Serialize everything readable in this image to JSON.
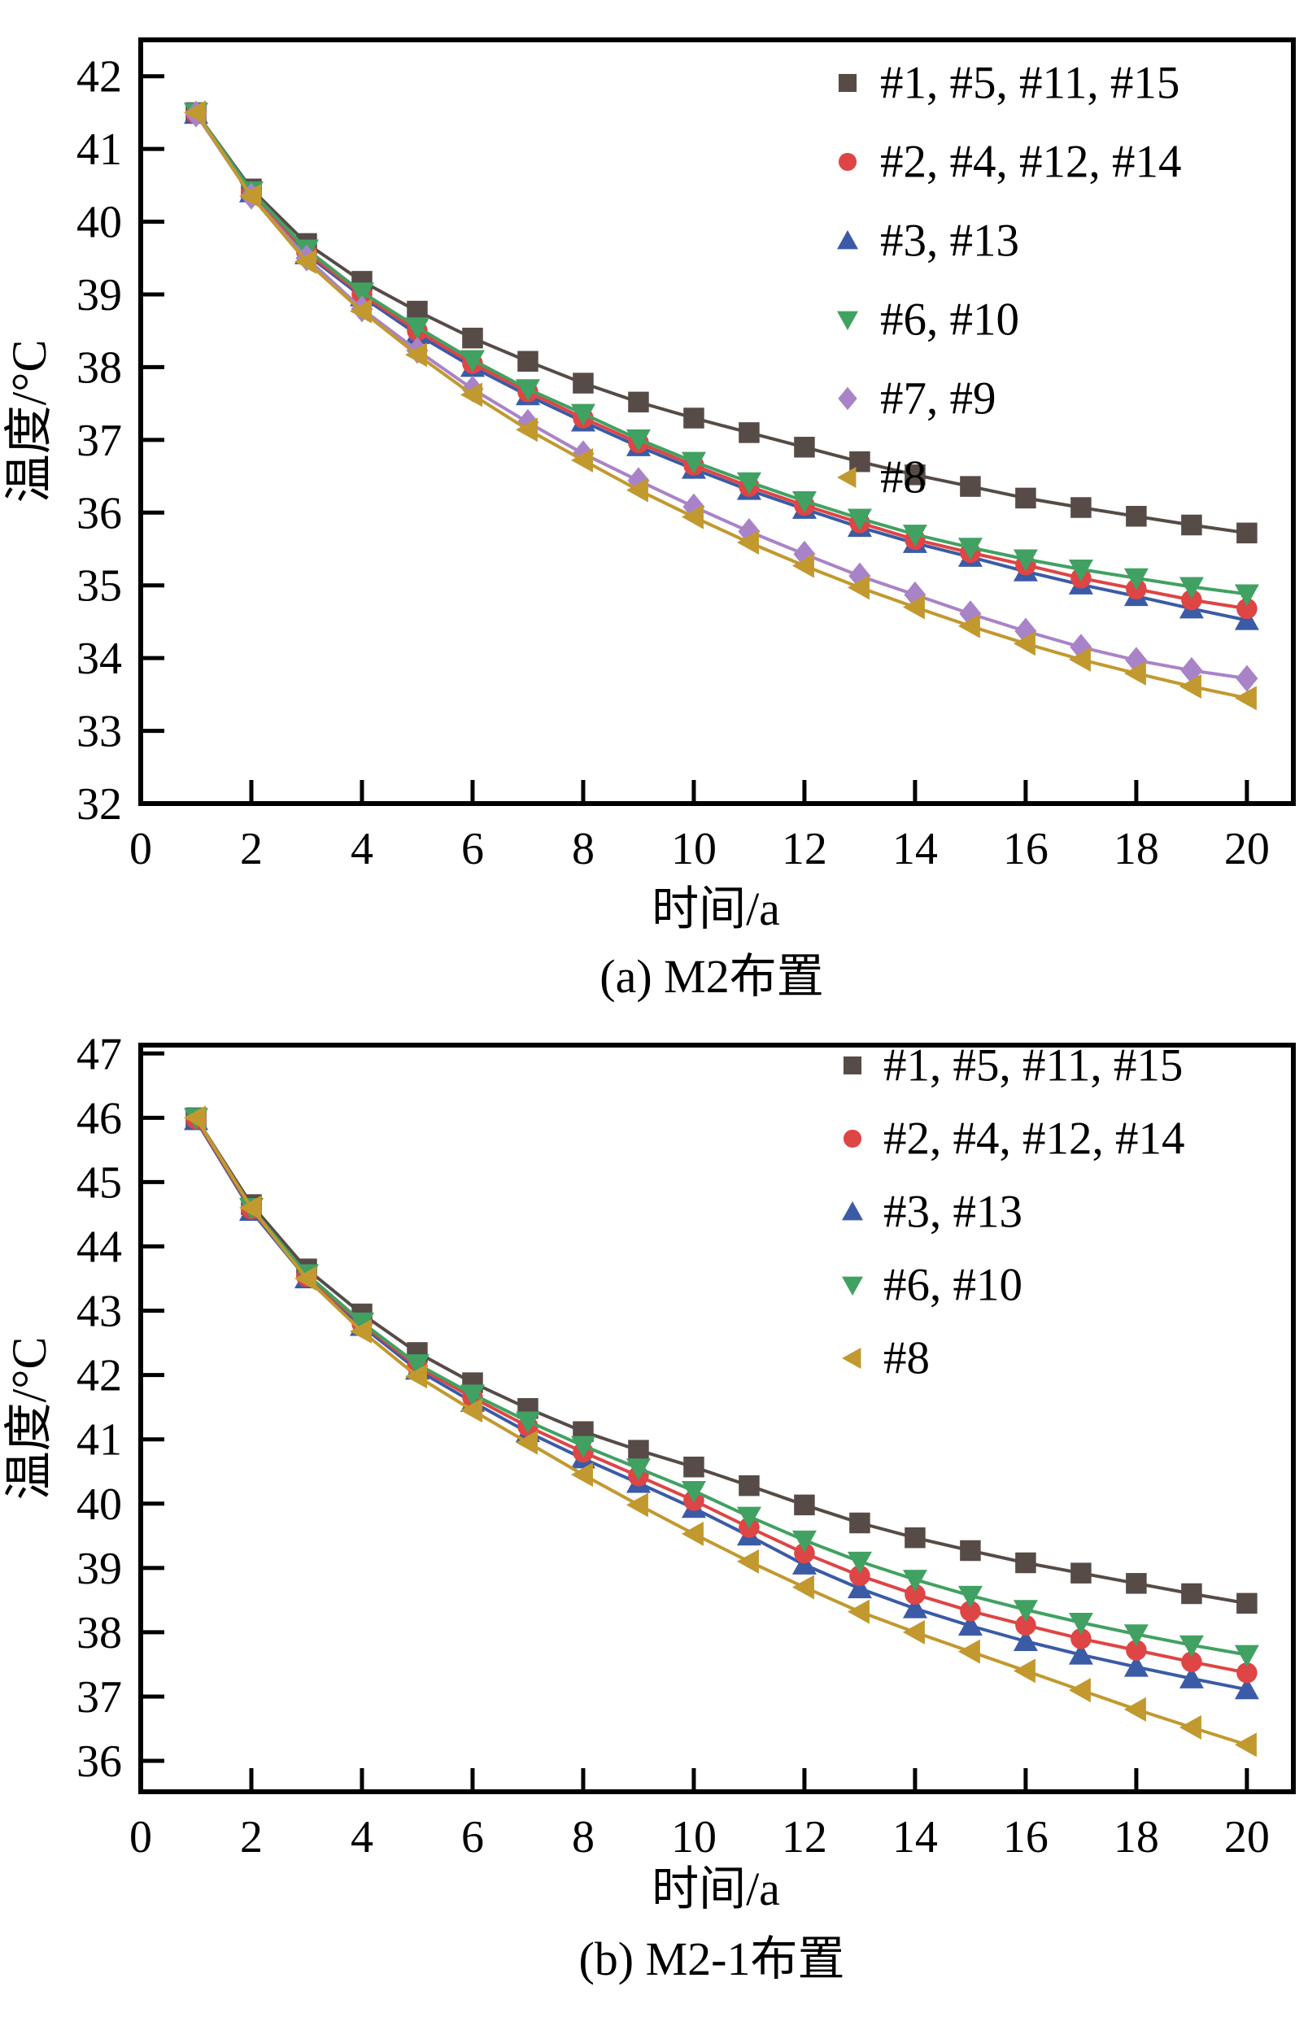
{
  "figure": {
    "background": "#ffffff",
    "text_color": "#000000",
    "axis_color": "#000000"
  },
  "chart_data": [
    {
      "type": "line",
      "title": "(a) M2布置",
      "xlabel": "时间/a",
      "ylabel": "温度/°C",
      "x": [
        1,
        2,
        3,
        4,
        5,
        6,
        7,
        8,
        9,
        10,
        11,
        12,
        13,
        14,
        15,
        16,
        17,
        18,
        19,
        20
      ],
      "xlim": [
        0,
        20.84
      ],
      "ylim": [
        32,
        42.5
      ],
      "xticks": [
        0,
        2,
        4,
        6,
        8,
        10,
        12,
        14,
        16,
        18,
        20
      ],
      "yticks": [
        32,
        33,
        34,
        35,
        36,
        37,
        38,
        39,
        40,
        41,
        42
      ],
      "grid": false,
      "legend_position": "top-right",
      "series": [
        {
          "name": "#1, #5, #11, #15",
          "marker": "square",
          "color": "#564B46",
          "values": [
            41.5,
            40.45,
            39.7,
            39.18,
            38.77,
            38.4,
            38.08,
            37.78,
            37.52,
            37.3,
            37.1,
            36.9,
            36.7,
            36.52,
            36.36,
            36.2,
            36.07,
            35.95,
            35.83,
            35.72
          ]
        },
        {
          "name": "#2, #4, #12, #14",
          "marker": "circle",
          "color": "#DE4545",
          "values": [
            41.48,
            40.4,
            39.58,
            39.0,
            38.5,
            38.05,
            37.66,
            37.3,
            36.96,
            36.65,
            36.36,
            36.1,
            35.86,
            35.63,
            35.45,
            35.28,
            35.1,
            34.95,
            34.8,
            34.68
          ]
        },
        {
          "name": "#3, #13",
          "marker": "triangle-up",
          "color": "#3B5BA6",
          "values": [
            41.48,
            40.4,
            39.55,
            38.97,
            38.45,
            38.0,
            37.61,
            37.25,
            36.91,
            36.6,
            36.31,
            36.05,
            35.8,
            35.58,
            35.39,
            35.19,
            35.01,
            34.85,
            34.68,
            34.52
          ]
        },
        {
          "name": "#6, #10",
          "marker": "triangle-down",
          "color": "#41A162",
          "values": [
            41.5,
            40.42,
            39.62,
            39.03,
            38.55,
            38.1,
            37.7,
            37.36,
            37.01,
            36.7,
            36.42,
            36.16,
            35.92,
            35.7,
            35.52,
            35.36,
            35.22,
            35.1,
            34.98,
            34.88
          ]
        },
        {
          "name": "#7, #9",
          "marker": "diamond",
          "color": "#A983C7",
          "values": [
            41.48,
            40.35,
            39.5,
            38.8,
            38.23,
            37.7,
            37.24,
            36.81,
            36.44,
            36.08,
            35.74,
            35.43,
            35.13,
            34.87,
            34.61,
            34.37,
            34.15,
            33.97,
            33.83,
            33.72
          ]
        },
        {
          "name": "#8",
          "marker": "triangle-left",
          "color": "#C2992F",
          "values": [
            41.5,
            40.35,
            39.45,
            38.77,
            38.17,
            37.62,
            37.14,
            36.72,
            36.31,
            35.94,
            35.59,
            35.27,
            34.97,
            34.7,
            34.44,
            34.2,
            33.98,
            33.79,
            33.61,
            33.45
          ]
        }
      ]
    },
    {
      "type": "line",
      "title": "(b) M2-1布置",
      "xlabel": "时间/a",
      "ylabel": "温度/°C",
      "x": [
        1,
        2,
        3,
        4,
        5,
        6,
        7,
        8,
        9,
        10,
        11,
        12,
        13,
        14,
        15,
        16,
        17,
        18,
        19,
        20
      ],
      "xlim": [
        0,
        20.84
      ],
      "ylim": [
        35.52,
        47.13
      ],
      "xticks": [
        0,
        2,
        4,
        6,
        8,
        10,
        12,
        14,
        16,
        18,
        20
      ],
      "yticks": [
        36,
        37,
        38,
        39,
        40,
        41,
        42,
        43,
        44,
        45,
        46,
        47
      ],
      "grid": false,
      "legend_position": "top-right",
      "series": [
        {
          "name": "#1, #5, #11, #15",
          "marker": "square",
          "color": "#564B46",
          "values": [
            46.0,
            44.65,
            43.65,
            42.95,
            42.35,
            41.88,
            41.48,
            41.12,
            40.83,
            40.57,
            40.28,
            39.98,
            39.7,
            39.47,
            39.27,
            39.08,
            38.92,
            38.76,
            38.6,
            38.45
          ]
        },
        {
          "name": "#2, #4, #12, #14",
          "marker": "circle",
          "color": "#DE4545",
          "values": [
            45.98,
            44.58,
            43.53,
            42.8,
            42.13,
            41.65,
            41.2,
            40.8,
            40.43,
            40.05,
            39.63,
            39.23,
            38.88,
            38.59,
            38.33,
            38.11,
            37.9,
            37.72,
            37.54,
            37.37
          ]
        },
        {
          "name": "#3, #13",
          "marker": "triangle-up",
          "color": "#3B5BA6",
          "values": [
            45.96,
            44.55,
            43.5,
            42.76,
            42.08,
            41.58,
            41.11,
            40.7,
            40.32,
            39.93,
            39.5,
            39.05,
            38.68,
            38.37,
            38.1,
            37.86,
            37.65,
            37.46,
            37.28,
            37.11
          ]
        },
        {
          "name": "#6, #10",
          "marker": "triangle-down",
          "color": "#41A162",
          "values": [
            46.0,
            44.6,
            43.57,
            42.82,
            42.17,
            41.7,
            41.28,
            40.9,
            40.55,
            40.2,
            39.8,
            39.43,
            39.1,
            38.82,
            38.57,
            38.35,
            38.15,
            37.97,
            37.8,
            37.65
          ]
        },
        {
          "name": "#8",
          "marker": "triangle-left",
          "color": "#C2992F",
          "values": [
            46.0,
            44.6,
            43.5,
            42.68,
            41.98,
            41.45,
            40.95,
            40.45,
            39.98,
            39.53,
            39.1,
            38.7,
            38.32,
            38.0,
            37.7,
            37.4,
            37.1,
            36.8,
            36.52,
            36.25
          ]
        }
      ]
    }
  ]
}
